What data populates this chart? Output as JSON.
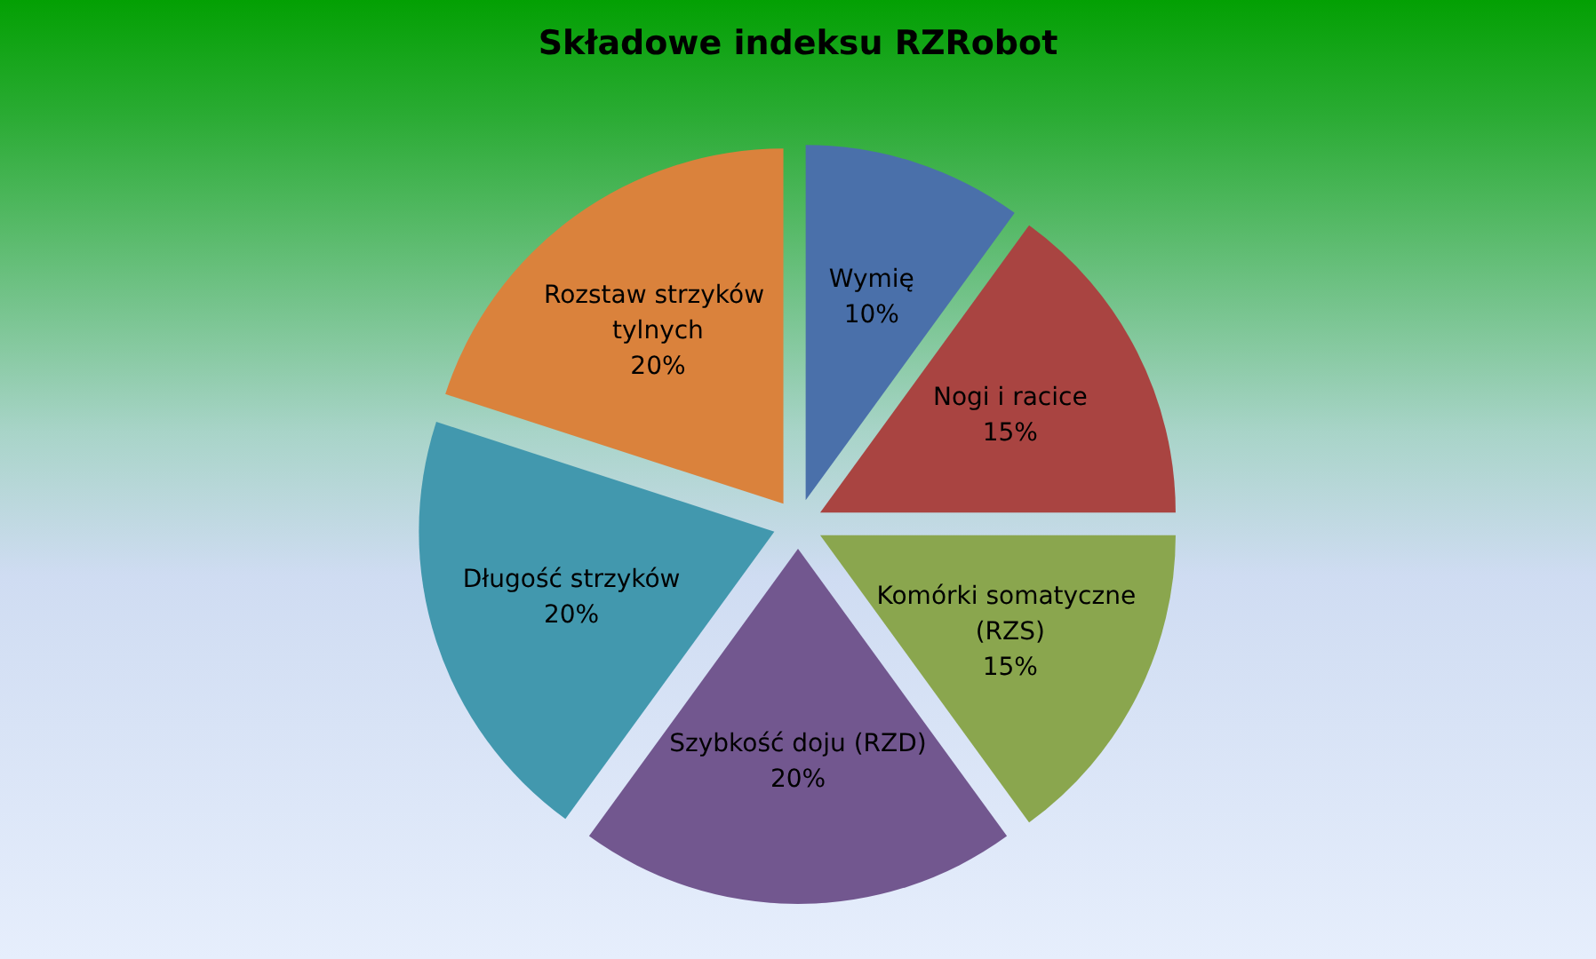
{
  "chart_data": {
    "type": "pie",
    "title": "Składowe indeksu RZRobot",
    "categories": [
      "Wymię",
      "Nogi i racice",
      "Komórki somatyczne (RZS)",
      "Szybkość doju (RZD)",
      "Długość strzyków",
      "Rozstaw strzyków tylnych"
    ],
    "values": [
      10,
      15,
      15,
      20,
      20,
      20
    ],
    "value_labels": [
      "10%",
      "15%",
      "15%",
      "20%",
      "20%",
      "20%"
    ],
    "colors": [
      "#4a70aa",
      "#a94441",
      "#8aa64e",
      "#72578f",
      "#4298ae",
      "#da823c"
    ],
    "legend": false
  }
}
